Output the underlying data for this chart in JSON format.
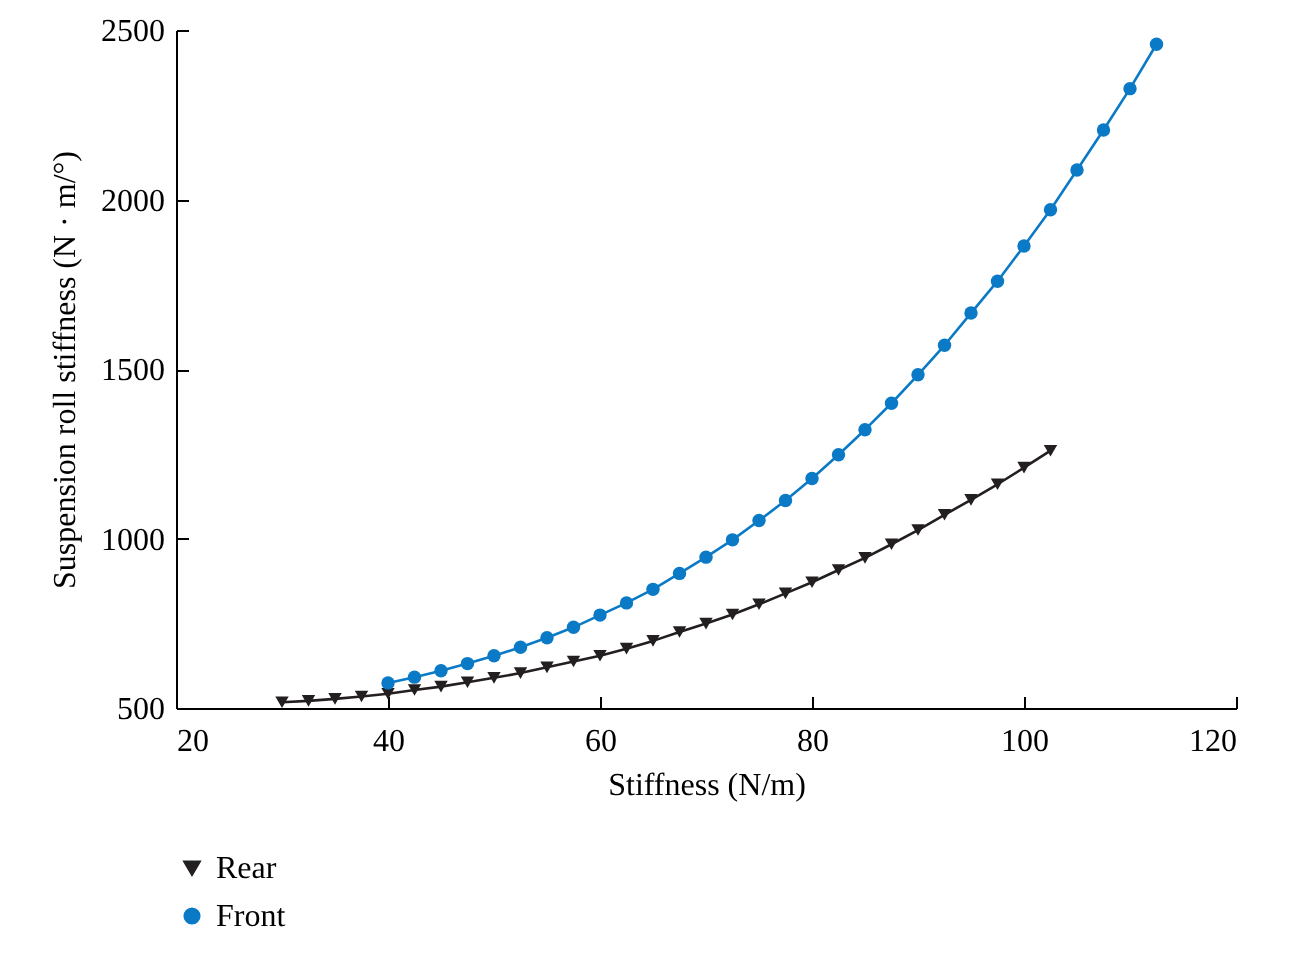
{
  "chart_data": {
    "type": "line",
    "xlabel": "Stiffness (N/m)",
    "ylabel": "Suspension roll stiffness (N · m/°)",
    "xlim": [
      20,
      120
    ],
    "xticks": [
      20,
      40,
      60,
      80,
      100,
      120
    ],
    "ylim": [
      500,
      2500
    ],
    "yticks": [
      500,
      1000,
      1500,
      2000,
      2500
    ],
    "grid": false,
    "legend": "bottom",
    "series": [
      {
        "name": "Rear",
        "color": "#231f20",
        "marker": "triangle",
        "x": [
          30,
          32.5,
          35,
          37.5,
          40,
          42.5,
          45,
          47.5,
          50,
          52.5,
          55,
          57.5,
          60,
          62.5,
          65,
          67.5,
          70,
          72.5,
          75,
          77.5,
          80,
          82.5,
          85,
          87.5,
          90,
          92.5,
          95,
          97.5,
          100,
          102.5
        ],
        "values": [
          517,
          521,
          527,
          534,
          542,
          553,
          563,
          576,
          589,
          603,
          620,
          637,
          654,
          675,
          698,
          724,
          749,
          776,
          806,
          838,
          871,
          907,
          943,
          983,
          1025,
          1070,
          1114,
          1160,
          1209,
          1259
        ]
      },
      {
        "name": "Front",
        "color": "#0a7ac6",
        "marker": "circle",
        "x": [
          40,
          42.5,
          45,
          47.5,
          50,
          52.5,
          55,
          57.5,
          60,
          62.5,
          65,
          67.5,
          70,
          72.5,
          75,
          77.5,
          80,
          82.5,
          85,
          87.5,
          90,
          92.5,
          95,
          97.5,
          100,
          102.5,
          105,
          107.5,
          110,
          112.5
        ],
        "values": [
          574,
          591,
          610,
          631,
          654,
          679,
          707,
          738,
          774,
          810,
          850,
          897,
          945,
          996,
          1053,
          1112,
          1177,
          1247,
          1321,
          1399,
          1483,
          1570,
          1665,
          1759,
          1863,
          1970,
          2087,
          2205,
          2327,
          2458
        ]
      }
    ]
  }
}
